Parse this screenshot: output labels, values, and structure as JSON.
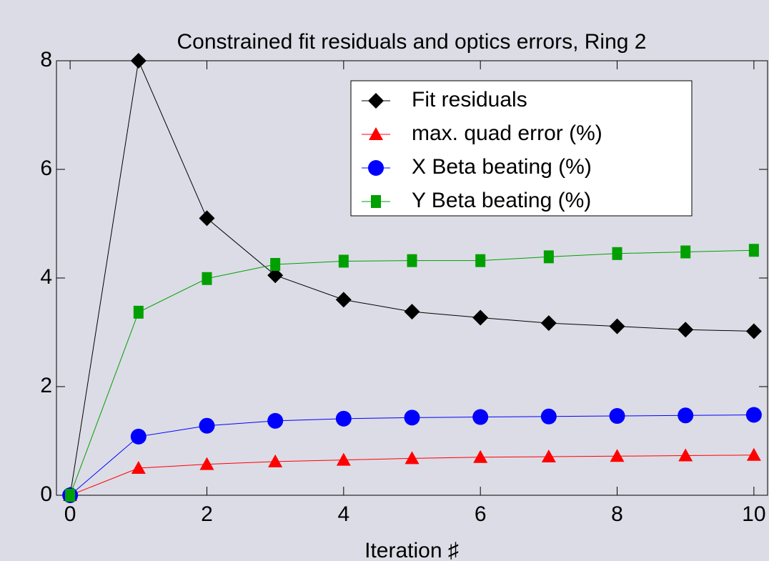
{
  "chart_data": {
    "type": "line",
    "title": "Constrained fit residuals and optics errors, Ring 2",
    "xlabel": "Iteration ♯",
    "x": [
      0,
      1,
      2,
      3,
      4,
      5,
      6,
      7,
      8,
      9,
      10
    ],
    "xlim": [
      -0.2,
      10.2
    ],
    "ylim": [
      0,
      8
    ],
    "xticks": [
      0,
      2,
      4,
      6,
      8,
      10
    ],
    "yticks": [
      0,
      2,
      4,
      6,
      8
    ],
    "legend": "upper right",
    "series": [
      {
        "name": "Fit residuals",
        "color": "#000000",
        "marker": "diamond",
        "values": [
          0,
          8,
          5.1,
          4.05,
          3.6,
          3.38,
          3.27,
          3.17,
          3.11,
          3.05,
          3.02
        ]
      },
      {
        "name": "max. quad error (%)",
        "color": "#ff0000",
        "marker": "triangle",
        "values": [
          0,
          0.5,
          0.57,
          0.62,
          0.65,
          0.68,
          0.7,
          0.71,
          0.72,
          0.73,
          0.74
        ]
      },
      {
        "name": "X Beta beating (%)",
        "color": "#0000ff",
        "marker": "circle",
        "values": [
          0,
          1.08,
          1.28,
          1.37,
          1.41,
          1.43,
          1.44,
          1.45,
          1.46,
          1.47,
          1.48
        ]
      },
      {
        "name": "Y Beta beating (%)",
        "color": "#00a000",
        "marker": "square",
        "values": [
          0,
          3.37,
          3.99,
          4.25,
          4.31,
          4.32,
          4.32,
          4.39,
          4.45,
          4.48,
          4.51
        ]
      }
    ]
  }
}
